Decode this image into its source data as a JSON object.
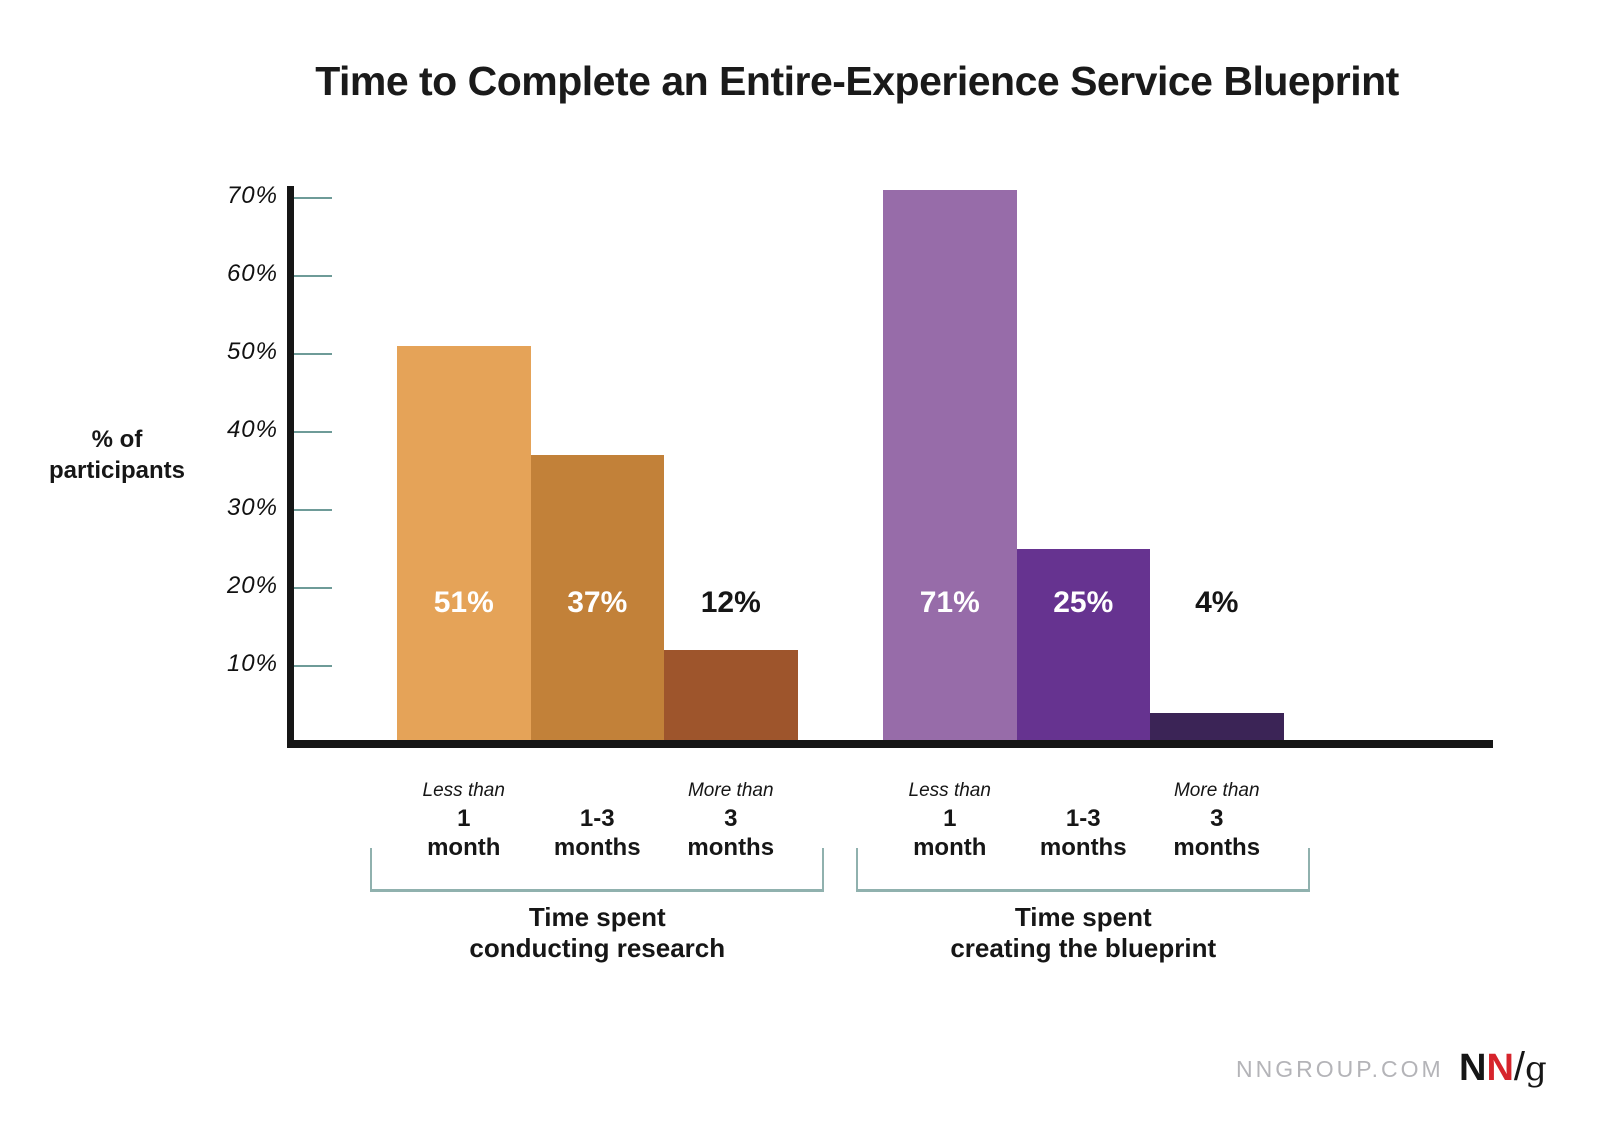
{
  "page": {
    "background": "#ffffff"
  },
  "chart_data": {
    "type": "bar",
    "title": "Time to Complete an Entire-Experience Service Blueprint",
    "ylabel": "% of participants",
    "ylabel_lines": [
      "% of",
      "participants"
    ],
    "ylim": [
      0,
      73
    ],
    "grid": false,
    "yticks": [
      70,
      60,
      50,
      40,
      30,
      20,
      10
    ],
    "ytick_labels": [
      "70%",
      "60%",
      "50%",
      "40%",
      "30%",
      "20%",
      "10%"
    ],
    "axis_color": "#161616",
    "tick_color": "#6E9B98",
    "bracket_color": "#90B1AE",
    "groups": [
      {
        "name": "Time spent conducting research",
        "name_lines": [
          "Time spent",
          "conducting research"
        ],
        "categories": [
          {
            "qualifier": "Less than",
            "number": "1",
            "unit": "month"
          },
          {
            "qualifier": "",
            "number": "1-3",
            "unit": "months"
          },
          {
            "qualifier": "More than",
            "number": "3",
            "unit": "months"
          }
        ],
        "values": [
          51,
          37,
          12
        ],
        "labels": [
          "51%",
          "37%",
          "12%"
        ],
        "bar_colors": [
          "#E5A358",
          "#C28139",
          "#9E552C"
        ],
        "label_colors": [
          "#FFFFFF",
          "#FFFFFF",
          "#161616"
        ]
      },
      {
        "name": "Time spent creating the blueprint",
        "name_lines": [
          "Time spent",
          "creating the blueprint"
        ],
        "categories": [
          {
            "qualifier": "Less than",
            "number": "1",
            "unit": "month"
          },
          {
            "qualifier": "",
            "number": "1-3",
            "unit": "months"
          },
          {
            "qualifier": "More than",
            "number": "3",
            "unit": "months"
          }
        ],
        "values": [
          71,
          25,
          4
        ],
        "labels": [
          "71%",
          "25%",
          "4%"
        ],
        "bar_colors": [
          "#976CA9",
          "#663390",
          "#3B2456"
        ],
        "label_colors": [
          "#FFFFFF",
          "#FFFFFF",
          "#161616"
        ]
      }
    ]
  },
  "footer": {
    "site": "NNGROUP.COM",
    "logo": {
      "n1": "N",
      "n2": "N",
      "slash": "/",
      "g": "g",
      "accent_red": "#D6242C"
    }
  }
}
